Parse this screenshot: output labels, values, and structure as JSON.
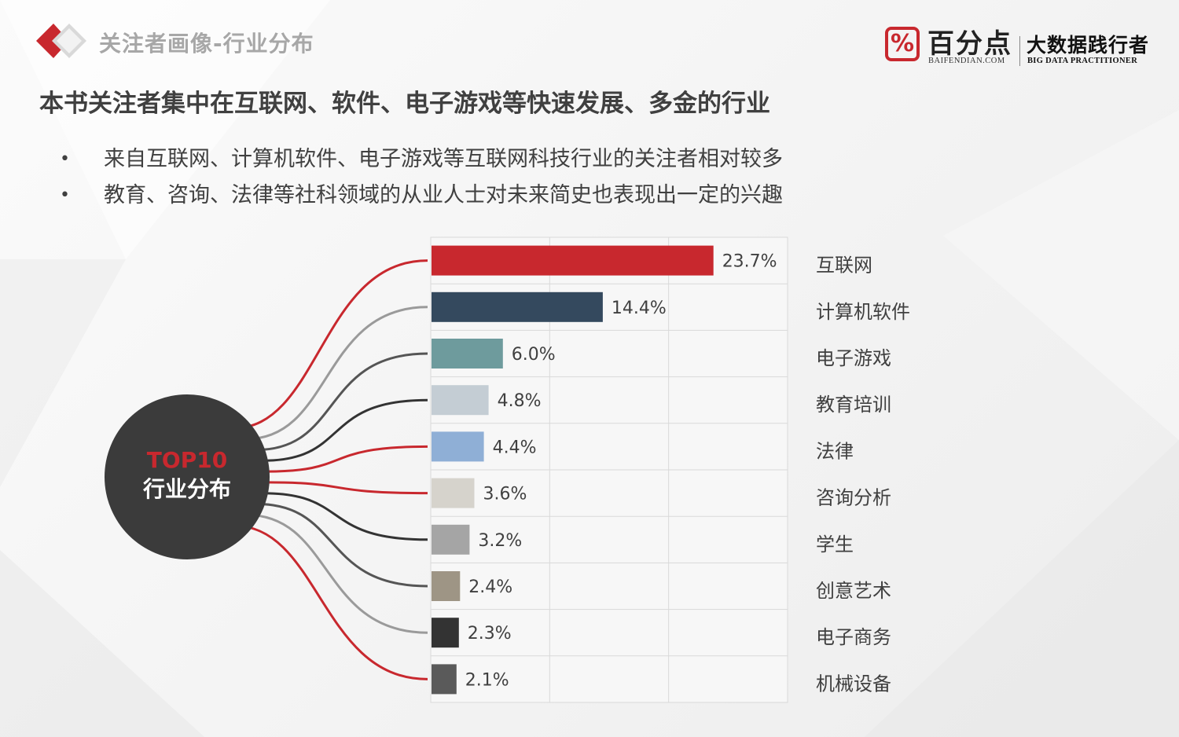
{
  "header": {
    "section_title": "关注者画像-行业分布"
  },
  "brand": {
    "mark": "%",
    "name": "百分点",
    "domain": "BAIFENDIAN.COM",
    "slogan": "大数据践行者",
    "slogan_en": "BIG DATA PRACTITIONER"
  },
  "headline": "本书关注者集中在互联网、软件、电子游戏等快速发展、多金的行业",
  "bullets": [
    "来自互联网、计算机软件、电子游戏等互联网科技行业的关注者相对较多",
    "教育、咨询、法律等社科领域的从业人士对未来简史也表现出一定的兴趣"
  ],
  "bullet_symbol": "•",
  "circle": {
    "top_label": "TOP10",
    "sub_label": "行业分布"
  },
  "chart_data": {
    "type": "bar",
    "orientation": "horizontal",
    "categories": [
      "互联网",
      "计算机软件",
      "电子游戏",
      "教育培训",
      "法律",
      "咨询分析",
      "学生",
      "创意艺术",
      "电子商务",
      "机械设备"
    ],
    "values": [
      23.7,
      14.4,
      6.0,
      4.8,
      4.4,
      3.6,
      3.2,
      2.4,
      2.3,
      2.1
    ],
    "value_labels": [
      "23.7%",
      "14.4%",
      "6.0%",
      "4.8%",
      "4.4%",
      "3.6%",
      "3.2%",
      "2.4%",
      "2.3%",
      "2.1%"
    ],
    "bar_colors": [
      "#c8282e",
      "#34495e",
      "#6e9b9d",
      "#c4cdd4",
      "#8fafd6",
      "#d6d3cc",
      "#a5a5a5",
      "#9e9585",
      "#333333",
      "#5a5a5a"
    ],
    "connector_colors": [
      "#c8282e",
      "#9a9a9a",
      "#555555",
      "#333333",
      "#c8282e",
      "#c8282e",
      "#333333",
      "#555555",
      "#9a9a9a",
      "#c8282e"
    ],
    "xlim": [
      0,
      30
    ],
    "grid": true,
    "legend": "none"
  }
}
